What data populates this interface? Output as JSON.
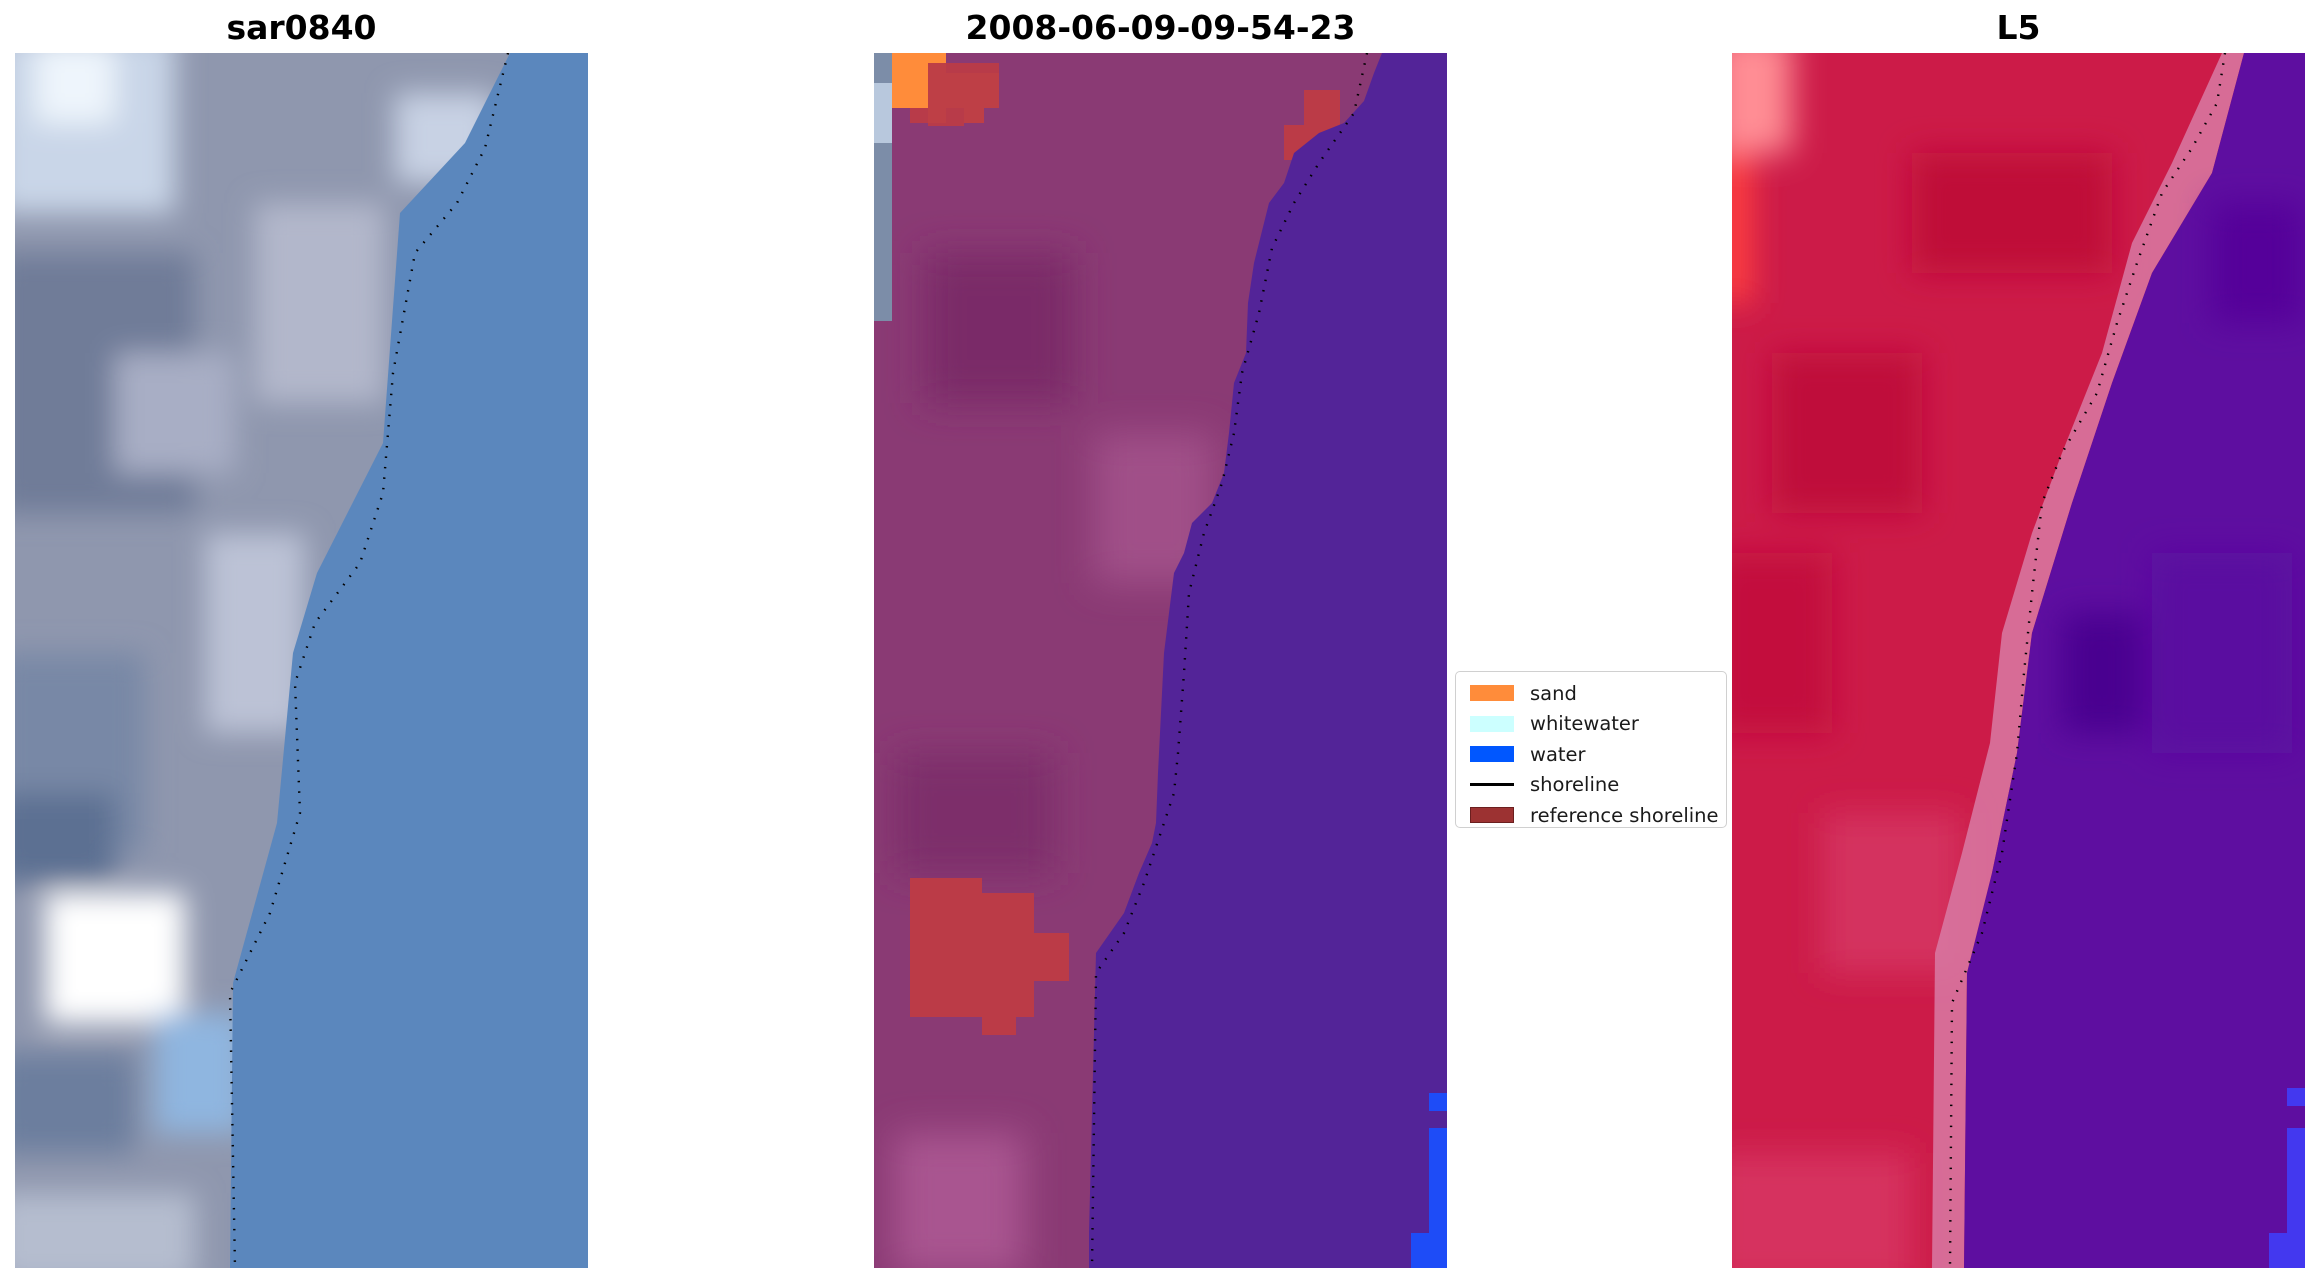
{
  "panels": [
    {
      "title": "sar0840"
    },
    {
      "title": "2008-06-09-09-54-23"
    },
    {
      "title": "L5"
    }
  ],
  "legend": {
    "items": [
      {
        "label": "sand",
        "color": "#ff8c3a",
        "kind": "patch"
      },
      {
        "label": "whitewater",
        "color": "#ccffff",
        "kind": "patch"
      },
      {
        "label": "water",
        "color": "#0057ff",
        "kind": "patch"
      },
      {
        "label": "shoreline",
        "color": "#000000",
        "kind": "line"
      },
      {
        "label": "reference shoreline",
        "color": "#9c3232",
        "kind": "patch"
      }
    ]
  },
  "colors": {
    "rgb_land": "#8e96ad",
    "rgb_water": "#5b86bd",
    "class_land": "#8a3a74",
    "class_water": "#532498",
    "class_sand": "#ff8c3a",
    "class_water_pixels": "#0057ff",
    "class_reference": "#bb3b47",
    "false_color_land": "#cc1b48",
    "false_color_water": "#5e0ea0",
    "shoreline": "#000000"
  }
}
